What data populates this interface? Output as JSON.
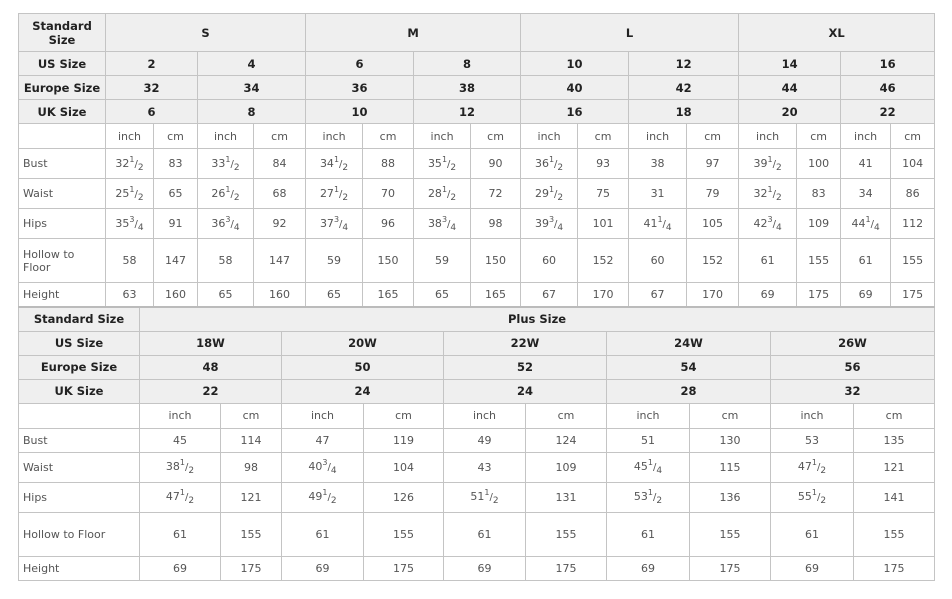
{
  "standard_table": {
    "header_label": "Standard Size",
    "groups": [
      "S",
      "M",
      "L",
      "XL"
    ],
    "us_label": "US Size",
    "us": [
      "2",
      "4",
      "6",
      "8",
      "10",
      "12",
      "14",
      "16"
    ],
    "europe_label": "Europe Size",
    "europe": [
      "32",
      "34",
      "36",
      "38",
      "40",
      "42",
      "44",
      "46"
    ],
    "uk_label": "UK Size",
    "uk": [
      "6",
      "8",
      "10",
      "12",
      "16",
      "18",
      "20",
      "22"
    ],
    "units": [
      "inch",
      "cm"
    ],
    "rows": [
      {
        "label": "Bust",
        "values": [
          "32 1/2",
          "83",
          "33 1/2",
          "84",
          "34 1/2",
          "88",
          "35 1/2",
          "90",
          "36 1/2",
          "93",
          "38",
          "97",
          "39 1/2",
          "100",
          "41",
          "104"
        ]
      },
      {
        "label": "Waist",
        "values": [
          "25 1/2",
          "65",
          "26 1/2",
          "68",
          "27 1/2",
          "70",
          "28 1/2",
          "72",
          "29 1/2",
          "75",
          "31",
          "79",
          "32 1/2",
          "83",
          "34",
          "86"
        ]
      },
      {
        "label": "Hips",
        "values": [
          "35 3/4",
          "91",
          "36 3/4",
          "92",
          "37 3/4",
          "96",
          "38 3/4",
          "98",
          "39 3/4",
          "101",
          "41 1/4",
          "105",
          "42 3/4",
          "109",
          "44 1/4",
          "112"
        ]
      },
      {
        "label": "Hollow to Floor",
        "values": [
          "58",
          "147",
          "58",
          "147",
          "59",
          "150",
          "59",
          "150",
          "60",
          "152",
          "60",
          "152",
          "61",
          "155",
          "61",
          "155"
        ]
      },
      {
        "label": "Height",
        "values": [
          "63",
          "160",
          "65",
          "160",
          "65",
          "165",
          "65",
          "165",
          "67",
          "170",
          "67",
          "170",
          "69",
          "175",
          "69",
          "175"
        ]
      }
    ]
  },
  "plus_table": {
    "header_label": "Standard Size",
    "group": "Plus Size",
    "us_label": "US Size",
    "us": [
      "18W",
      "20W",
      "22W",
      "24W",
      "26W"
    ],
    "europe_label": "Europe Size",
    "europe": [
      "48",
      "50",
      "52",
      "54",
      "56"
    ],
    "uk_label": "UK Size",
    "uk": [
      "22",
      "24",
      "24",
      "28",
      "32"
    ],
    "units": [
      "inch",
      "cm"
    ],
    "rows": [
      {
        "label": "Bust",
        "values": [
          "45",
          "114",
          "47",
          "119",
          "49",
          "124",
          "51",
          "130",
          "53",
          "135"
        ]
      },
      {
        "label": "Waist",
        "values": [
          "38 1/2",
          "98",
          "40 3/4",
          "104",
          "43",
          "109",
          "45 1/4",
          "115",
          "47 1/2",
          "121"
        ]
      },
      {
        "label": "Hips",
        "values": [
          "47 1/2",
          "121",
          "49 1/2",
          "126",
          "51 1/2",
          "131",
          "53 1/2",
          "136",
          "55 1/2",
          "141"
        ]
      },
      {
        "label": "Hollow to Floor",
        "values": [
          "61",
          "155",
          "61",
          "155",
          "61",
          "155",
          "61",
          "155",
          "61",
          "155"
        ]
      },
      {
        "label": "Height",
        "values": [
          "69",
          "175",
          "69",
          "175",
          "69",
          "175",
          "69",
          "175",
          "69",
          "175"
        ]
      }
    ]
  }
}
